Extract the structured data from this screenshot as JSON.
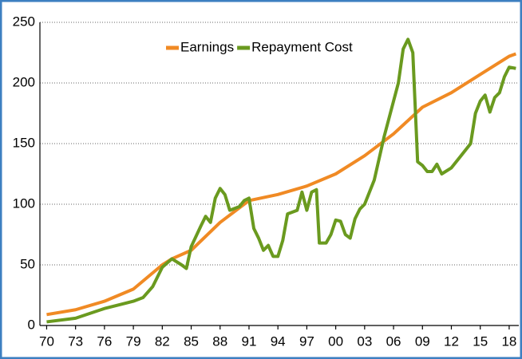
{
  "chart_data": {
    "type": "line",
    "series": [
      {
        "name": "Earnings",
        "color": "#f08a24",
        "x": [
          1970,
          1973,
          1976,
          1979,
          1982,
          1983,
          1985,
          1988,
          1991,
          1994,
          1997,
          2000,
          2003,
          2006,
          2009,
          2012,
          2015,
          2018,
          2018.7
        ],
        "values": [
          9,
          13,
          20,
          30,
          50,
          55,
          62,
          85,
          103,
          108,
          115,
          125,
          140,
          158,
          180,
          192,
          207,
          222,
          224
        ]
      },
      {
        "name": "Repayment Cost",
        "color": "#6a9a1f",
        "x": [
          1970,
          1973,
          1976,
          1979,
          1980,
          1981,
          1982,
          1983,
          1984,
          1984.5,
          1985,
          1986,
          1986.5,
          1987,
          1987.5,
          1988,
          1988.5,
          1989,
          1990,
          1990.5,
          1991,
          1991.5,
          1992,
          1992.5,
          1993,
          1993.5,
          1994,
          1994.5,
          1995,
          1996,
          1996.5,
          1997,
          1997.5,
          1998,
          1998.3,
          1999,
          1999.5,
          2000,
          2000.5,
          2001,
          2001.5,
          2002,
          2002.5,
          2003,
          2004,
          2005,
          2006,
          2006.5,
          2007,
          2007.5,
          2008,
          2008.5,
          2009,
          2009.5,
          2010,
          2010.5,
          2011,
          2012,
          2013,
          2014,
          2014.5,
          2015,
          2015.5,
          2016,
          2016.5,
          2017,
          2017.5,
          2018,
          2018.7
        ],
        "values": [
          3,
          6,
          14,
          20,
          23,
          32,
          48,
          55,
          50,
          47,
          65,
          82,
          90,
          85,
          105,
          113,
          108,
          95,
          98,
          103,
          105,
          80,
          72,
          62,
          66,
          57,
          57,
          70,
          92,
          95,
          110,
          95,
          110,
          112,
          68,
          68,
          75,
          87,
          86,
          75,
          72,
          88,
          96,
          100,
          120,
          155,
          185,
          200,
          228,
          236,
          225,
          135,
          132,
          127,
          127,
          133,
          125,
          130,
          140,
          150,
          175,
          185,
          190,
          176,
          188,
          192,
          205,
          213,
          212
        ]
      }
    ],
    "xlim": [
      1969.3,
      2019
    ],
    "xticks": [
      {
        "value": 1970,
        "label": "70"
      },
      {
        "value": 1973,
        "label": "73"
      },
      {
        "value": 1976,
        "label": "76"
      },
      {
        "value": 1979,
        "label": "79"
      },
      {
        "value": 1982,
        "label": "82"
      },
      {
        "value": 1985,
        "label": "85"
      },
      {
        "value": 1988,
        "label": "88"
      },
      {
        "value": 1991,
        "label": "91"
      },
      {
        "value": 1994,
        "label": "94"
      },
      {
        "value": 1997,
        "label": "97"
      },
      {
        "value": 2000,
        "label": "00"
      },
      {
        "value": 2003,
        "label": "03"
      },
      {
        "value": 2006,
        "label": "06"
      },
      {
        "value": 2009,
        "label": "09"
      },
      {
        "value": 2012,
        "label": "12"
      },
      {
        "value": 2015,
        "label": "15"
      },
      {
        "value": 2018,
        "label": "18"
      }
    ],
    "ylim": [
      0,
      250
    ],
    "yticks": [
      0,
      50,
      100,
      150,
      200,
      250
    ],
    "grid": true,
    "legend": "top"
  }
}
